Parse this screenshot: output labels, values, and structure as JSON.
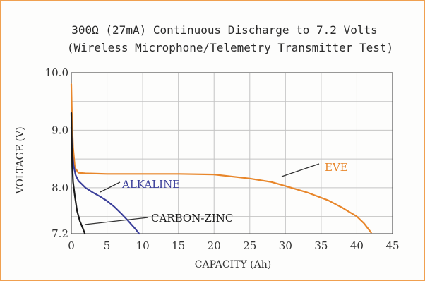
{
  "chart_data": {
    "type": "line",
    "title": "300Ω (27mA) Continuous Discharge to 7.2 Volts",
    "subtitle": "(Wireless Microphone/Telemetry Transmitter Test)",
    "xlabel": "CAPACITY (Ah)",
    "ylabel": "VOLTAGE (V)",
    "xlim": [
      0,
      45
    ],
    "ylim": [
      7.2,
      10.0
    ],
    "x_ticks": [
      0,
      5,
      10,
      15,
      20,
      25,
      30,
      35,
      40,
      45
    ],
    "y_ticks": [
      7.2,
      8.0,
      9.0,
      10.0
    ],
    "y_tick_labels": [
      "7.2",
      "8.0",
      "9.0",
      "10.0"
    ],
    "grid": true,
    "series": [
      {
        "name": "EVE",
        "color": "#e8862a",
        "x": [
          0,
          0.1,
          0.25,
          0.5,
          1,
          2,
          5,
          10,
          15,
          20,
          25,
          28,
          30,
          33,
          36,
          38,
          40,
          41,
          42
        ],
        "y": [
          9.8,
          9.2,
          8.7,
          8.35,
          8.26,
          8.25,
          8.24,
          8.24,
          8.24,
          8.23,
          8.16,
          8.1,
          8.03,
          7.92,
          7.78,
          7.65,
          7.5,
          7.38,
          7.22
        ]
      },
      {
        "name": "ALKALINE",
        "color": "#3b3f9a",
        "x": [
          0,
          0.1,
          0.3,
          0.6,
          1,
          2,
          3,
          4,
          5,
          6,
          7,
          8,
          9,
          9.5
        ],
        "y": [
          9.05,
          8.7,
          8.4,
          8.22,
          8.12,
          8.0,
          7.92,
          7.85,
          7.77,
          7.67,
          7.55,
          7.42,
          7.28,
          7.2
        ]
      },
      {
        "name": "CARBON-ZINC",
        "color": "#1a1a1a",
        "x": [
          0,
          0.1,
          0.25,
          0.5,
          0.8,
          1.2,
          1.6,
          1.9
        ],
        "y": [
          9.3,
          8.55,
          8.1,
          7.85,
          7.6,
          7.42,
          7.3,
          7.2
        ]
      }
    ]
  }
}
